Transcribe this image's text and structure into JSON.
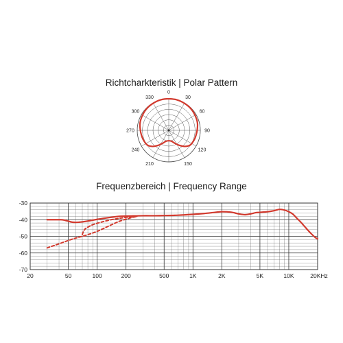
{
  "chart_data": [
    {
      "type": "polar",
      "title": "Richtcharkteristik | Polar Pattern",
      "angle_labels": [
        "0",
        "30",
        "60",
        "90",
        "120",
        "150",
        "210",
        "240",
        "270",
        "300",
        "330"
      ],
      "pattern": "cardioid",
      "color": "#d23a2e",
      "pattern_points": [
        {
          "angle": 0,
          "r": 1.0
        },
        {
          "angle": 15,
          "r": 1.0
        },
        {
          "angle": 30,
          "r": 0.99
        },
        {
          "angle": 45,
          "r": 0.98
        },
        {
          "angle": 60,
          "r": 0.96
        },
        {
          "angle": 75,
          "r": 0.94
        },
        {
          "angle": 90,
          "r": 0.9
        },
        {
          "angle": 105,
          "r": 0.87
        },
        {
          "angle": 115,
          "r": 0.85
        },
        {
          "angle": 125,
          "r": 0.82
        },
        {
          "angle": 135,
          "r": 0.72
        },
        {
          "angle": 145,
          "r": 0.58
        },
        {
          "angle": 155,
          "r": 0.45
        },
        {
          "angle": 165,
          "r": 0.36
        },
        {
          "angle": 180,
          "r": 0.33
        },
        {
          "angle": 195,
          "r": 0.36
        },
        {
          "angle": 205,
          "r": 0.45
        },
        {
          "angle": 215,
          "r": 0.58
        },
        {
          "angle": 225,
          "r": 0.72
        },
        {
          "angle": 235,
          "r": 0.82
        },
        {
          "angle": 245,
          "r": 0.85
        },
        {
          "angle": 255,
          "r": 0.87
        },
        {
          "angle": 270,
          "r": 0.9
        },
        {
          "angle": 285,
          "r": 0.94
        },
        {
          "angle": 300,
          "r": 0.96
        },
        {
          "angle": 315,
          "r": 0.98
        },
        {
          "angle": 330,
          "r": 0.99
        },
        {
          "angle": 345,
          "r": 1.0
        }
      ]
    },
    {
      "type": "line",
      "title": "Frequenzbereich | Frequency Range",
      "xscale": "log",
      "xlim": [
        20,
        20000
      ],
      "ylim": [
        -70,
        -30
      ],
      "x_tick_values": [
        20,
        50,
        100,
        200,
        500,
        1000,
        2000,
        5000,
        10000,
        20000
      ],
      "x_tick_labels": [
        "20",
        "50",
        "100",
        "200",
        "500",
        "1K",
        "2K",
        "5K",
        "10K",
        "20KHz"
      ],
      "y_tick_values": [
        -30,
        -40,
        -50,
        -60,
        -70
      ],
      "y_tick_labels": [
        "-30",
        "-40",
        "-50",
        "-60",
        "-70"
      ],
      "grid": true,
      "series": [
        {
          "style": "solid",
          "color": "#d23a2e",
          "x": [
            30,
            40,
            45,
            55,
            65,
            80,
            100,
            130,
            170,
            220,
            300,
            400,
            500,
            700,
            1000,
            1300,
            1700,
            2000,
            2500,
            3000,
            3500,
            4000,
            4500,
            5000,
            6000,
            7000,
            8000,
            9000,
            10000,
            11000,
            12000,
            13500,
            15000,
            17000,
            19000,
            20000
          ],
          "y": [
            -40,
            -40,
            -40.2,
            -41.5,
            -41.5,
            -40.8,
            -39.8,
            -38.8,
            -38,
            -37.8,
            -37.6,
            -37.6,
            -37.5,
            -37.3,
            -36.8,
            -36.3,
            -35.6,
            -35.2,
            -35.5,
            -36.5,
            -37,
            -36.5,
            -35.8,
            -35.6,
            -35.2,
            -34.6,
            -33.8,
            -34.2,
            -35.2,
            -36.6,
            -38.8,
            -41.8,
            -44.8,
            -48.2,
            -50.8,
            -51.5
          ]
        },
        {
          "style": "dashed",
          "color": "#d23a2e",
          "x": [
            30,
            40,
            50,
            60,
            70,
            80,
            100,
            130,
            170,
            220,
            260
          ],
          "y": [
            -57,
            -54.5,
            -52.5,
            -51,
            -50,
            -49,
            -47,
            -44,
            -41,
            -39,
            -38
          ]
        },
        {
          "style": "dashed",
          "color": "#d23a2e",
          "x": [
            70,
            72,
            75,
            80,
            90,
            110,
            140,
            180,
            220,
            260
          ],
          "y": [
            -49,
            -47,
            -45.5,
            -44.5,
            -43,
            -41.5,
            -40,
            -39,
            -38.3,
            -38
          ]
        }
      ]
    }
  ]
}
